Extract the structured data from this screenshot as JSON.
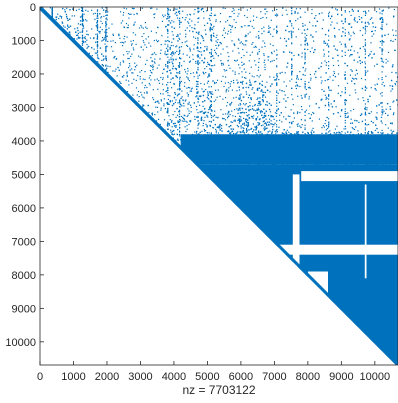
{
  "chart_data": {
    "type": "spy",
    "title": "",
    "xlabel": "nz = 7703122",
    "ylabel": "",
    "matrix_size": 10692,
    "xlim": [
      0,
      10692
    ],
    "ylim": [
      10692,
      0
    ],
    "xticks": [
      0,
      1000,
      2000,
      3000,
      4000,
      5000,
      6000,
      7000,
      8000,
      9000,
      10000
    ],
    "xtick_labels": [
      "0",
      "1000",
      "2000",
      "3000",
      "4000",
      "5000",
      "6000",
      "7000",
      "8000",
      "9000",
      "10000"
    ],
    "yticks": [
      0,
      1000,
      2000,
      3000,
      4000,
      5000,
      6000,
      7000,
      8000,
      9000,
      10000
    ],
    "ytick_labels": [
      "0",
      "1000",
      "2000",
      "3000",
      "4000",
      "5000",
      "6000",
      "7000",
      "8000",
      "9000",
      "10000"
    ],
    "grid": false,
    "legend": "none",
    "marker_color": "#0072BD",
    "structure": "upper-triangular",
    "diagonal_band": true,
    "dense_block_rows": [
      4700,
      10692
    ],
    "dense_block_cols": [
      4700,
      10692
    ],
    "dense_regions": [
      {
        "rows": [
          0,
          2900
        ],
        "cols": [
          350,
          1300
        ],
        "density": 0.35
      },
      {
        "rows": [
          0,
          2900
        ],
        "cols": [
          1650,
          2000
        ],
        "density": 0.35
      },
      {
        "rows": [
          0,
          4300
        ],
        "cols": [
          3750,
          4200
        ],
        "density": 0.35
      },
      {
        "rows": [
          0,
          4400
        ],
        "cols": [
          4650,
          5150
        ],
        "density": 0.3
      },
      {
        "rows": [
          2200,
          4600
        ],
        "cols": [
          5900,
          7000
        ],
        "density": 0.45
      },
      {
        "rows": [
          3000,
          4200
        ],
        "cols": [
          4800,
          7000
        ],
        "density": 0.4
      },
      {
        "rows": [
          3700,
          4700
        ],
        "cols": [
          7000,
          10692
        ],
        "density": 0.9
      },
      {
        "rows": [
          0,
          3800
        ],
        "cols": [
          7000,
          10692
        ],
        "density": 0.12
      }
    ],
    "white_gaps": [
      {
        "rows": [
          5000,
          8300
        ],
        "cols": [
          7550,
          7750
        ]
      },
      {
        "rows": [
          7100,
          7400
        ],
        "cols": [
          7000,
          10692
        ]
      },
      {
        "rows": [
          5300,
          8100
        ],
        "cols": [
          9700,
          9750
        ]
      },
      {
        "rows": [
          7900,
          9200
        ],
        "cols": [
          8000,
          8600
        ]
      },
      {
        "rows": [
          4900,
          5200
        ],
        "cols": [
          7800,
          10692
        ]
      }
    ]
  }
}
